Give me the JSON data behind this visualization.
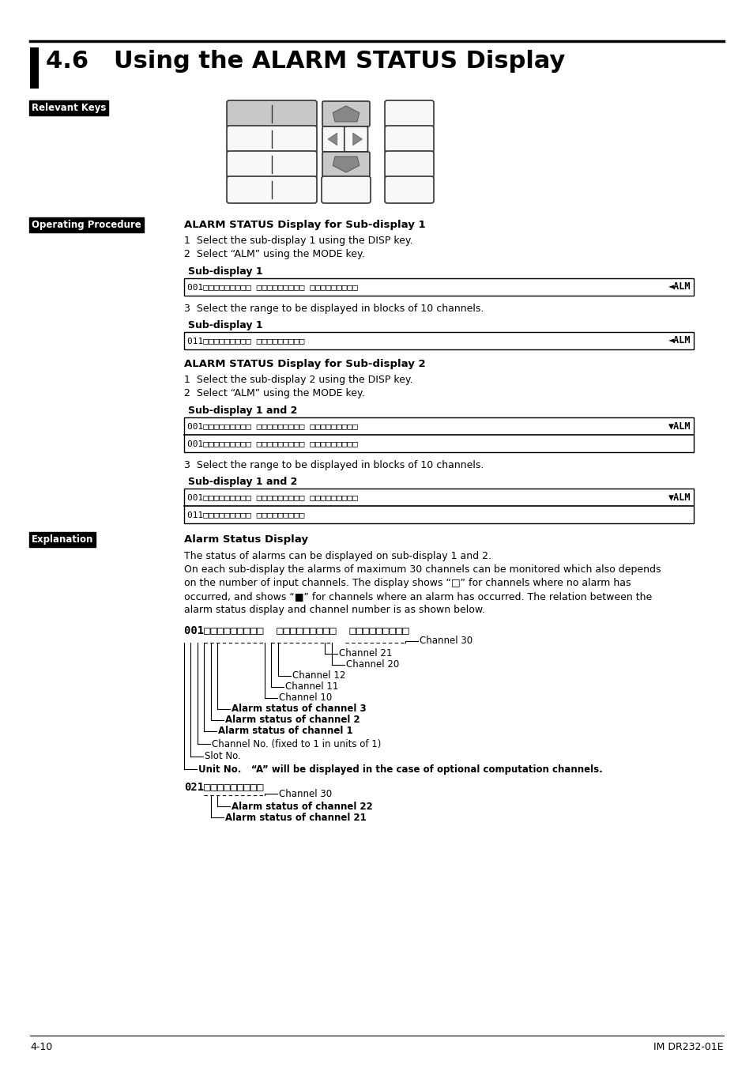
{
  "title": "4.6   Using the ALARM STATUS Display",
  "page_bg": "#ffffff",
  "section_labels": {
    "relevant_keys": "Relevant Keys",
    "operating_procedure": "Operating Procedure",
    "explanation": "Explanation"
  },
  "op_proc_title1": "ALARM STATUS Display for Sub-display 1",
  "op_proc_steps1": [
    "1  Select the sub-display 1 using the DISP key.",
    "2  Select “ALM” using the MODE key."
  ],
  "sub_display_label1a": "Sub-display 1",
  "sub_display_label1b": "Sub-display 1",
  "step3a": "3  Select the range to be displayed in blocks of 10 channels.",
  "op_proc_title2": "ALARM STATUS Display for Sub-display 2",
  "op_proc_steps2": [
    "1  Select the sub-display 2 using the DISP key.",
    "2  Select “ALM” using the MODE key."
  ],
  "sub_display_label2a": "Sub-display 1 and 2",
  "sub_display_label2b": "Sub-display 1 and 2",
  "step3b": "3  Select the range to be displayed in blocks of 10 channels.",
  "explanation_title": "Alarm Status Display",
  "explanation_text1": "The status of alarms can be displayed on sub-display 1 and 2.",
  "explanation_text2a": "On each sub-display the alarms of maximum 30 channels can be monitored which also depends",
  "explanation_text2b": "on the number of input channels. The display shows “□” for channels where no alarm has",
  "explanation_text2c": "occurred, and shows “■” for channels where an alarm has occurred. The relation between the",
  "explanation_text2d": "alarm status display and channel number is as shown below.",
  "footer_left": "4-10",
  "footer_right": "IM DR232-01E",
  "diag_labels": {
    "ch30": "Channel 30",
    "ch21": "Channel 21",
    "ch20": "Channel 20",
    "ch12": "Channel 12",
    "ch11": "Channel 11",
    "ch10": "Channel 10",
    "alm3": "Alarm status of channel 3",
    "alm2": "Alarm status of channel 2",
    "alm1": "Alarm status of channel 1",
    "chno": "Channel No. (fixed to 1 in units of 1)",
    "slot": "Slot No.",
    "unit": "Unit No.   “A” will be displayed in the case of optional computation channels."
  },
  "diag2_labels": {
    "ch30": "Channel 30",
    "alm22": "Alarm status of channel 22",
    "alm21": "Alarm status of channel 21"
  }
}
